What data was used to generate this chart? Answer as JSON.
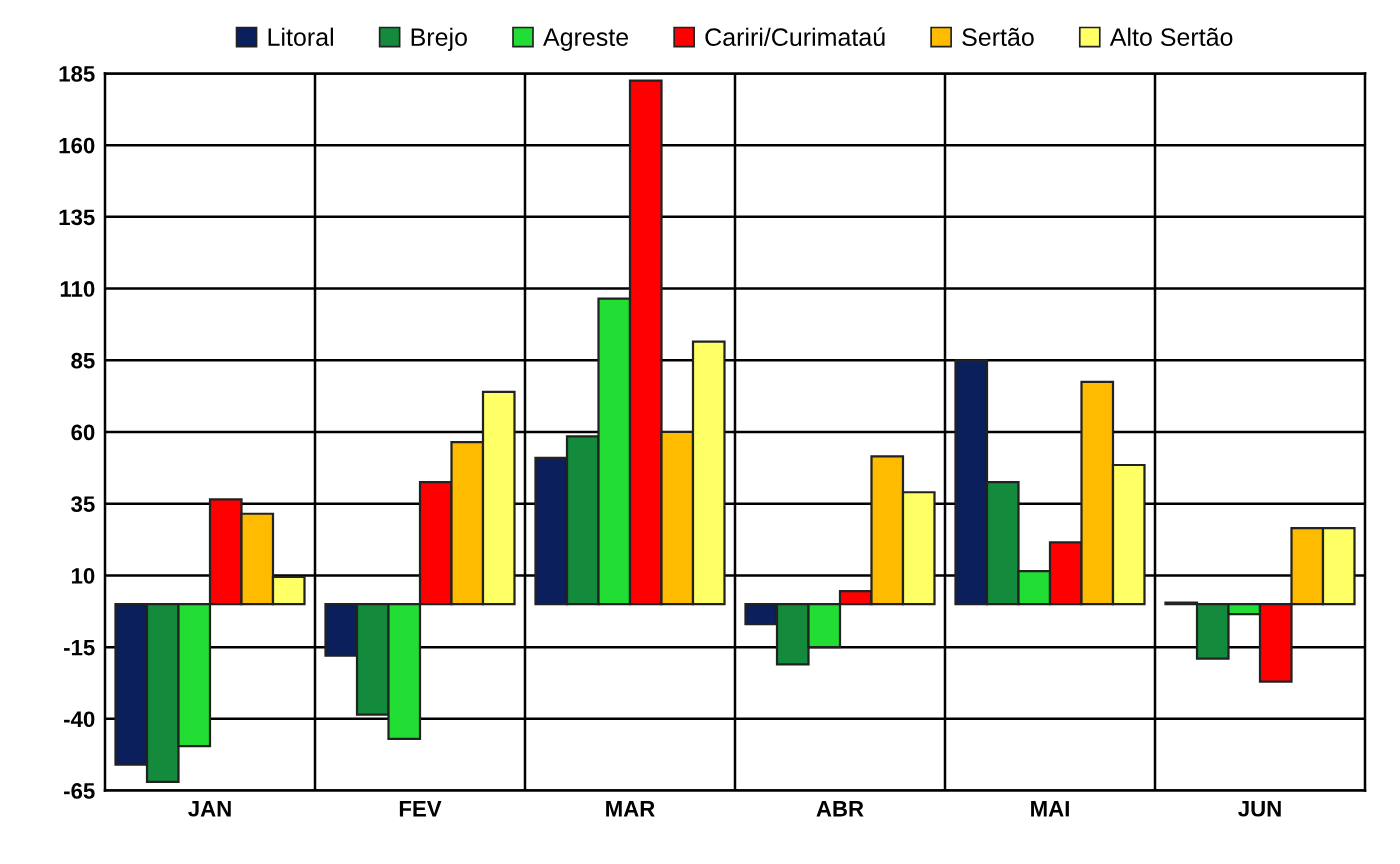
{
  "chart_data": {
    "type": "bar",
    "categories": [
      "JAN",
      "FEV",
      "MAR",
      "ABR",
      "MAI",
      "JUN"
    ],
    "series": [
      {
        "name": "Litoral",
        "color": "#0a1f5c",
        "values": [
          -56,
          -18,
          51,
          -7,
          85,
          0.5
        ]
      },
      {
        "name": "Brejo",
        "color": "#138a3c",
        "values": [
          -62,
          -38.5,
          58.5,
          -21,
          42.5,
          -19
        ]
      },
      {
        "name": "Agreste",
        "color": "#22dd33",
        "values": [
          -49.5,
          -47,
          106.5,
          -15,
          11.5,
          -3.5
        ]
      },
      {
        "name": "Cariri/Curimataú",
        "color": "#ff0000",
        "values": [
          36.5,
          42.5,
          182.5,
          4.5,
          21.5,
          -27
        ]
      },
      {
        "name": "Sertão",
        "color": "#ffbb00",
        "values": [
          31.5,
          56.5,
          60,
          51.5,
          77.5,
          26.5
        ]
      },
      {
        "name": "Alto Sertão",
        "color": "#ffff66",
        "values": [
          9.5,
          74,
          91.5,
          39,
          48.5,
          26.5
        ]
      }
    ],
    "ylim": [
      -65,
      185
    ],
    "yticks": [
      -65,
      -40,
      -15,
      10,
      35,
      60,
      85,
      110,
      135,
      160,
      185
    ],
    "grid": true,
    "legend": "top"
  }
}
